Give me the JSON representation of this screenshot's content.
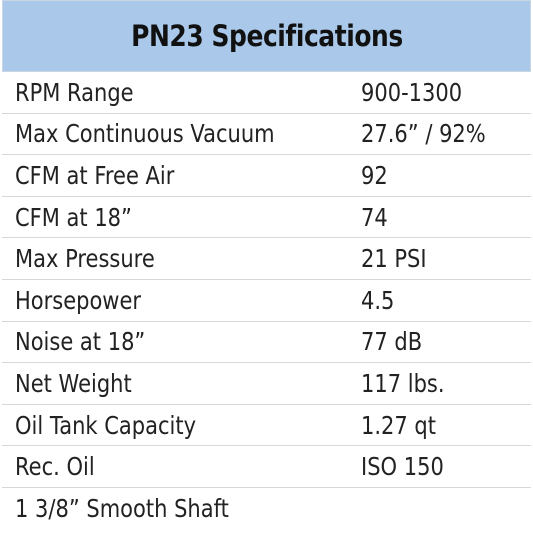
{
  "title": "PN23 Specifications",
  "rows": [
    {
      "label": "RPM Range",
      "value": "900-1300"
    },
    {
      "label": "Max Continuous Vacuum",
      "value": "27.6” / 92%"
    },
    {
      "label": "CFM at Free Air",
      "value": "92"
    },
    {
      "label": "CFM at 18”",
      "value": "74"
    },
    {
      "label": "Max Pressure",
      "value": "21 PSI"
    },
    {
      "label": "Horsepower",
      "value": "4.5"
    },
    {
      "label": "Noise at 18”",
      "value": "77 dB"
    },
    {
      "label": "Net Weight",
      "value": "117 lbs."
    },
    {
      "label": "Oil Tank Capacity",
      "value": "1.27 qt"
    },
    {
      "label": "Rec. Oil",
      "value": "ISO 150"
    },
    {
      "label": "1 3/8” Smooth Shaft",
      "value": ""
    }
  ]
}
